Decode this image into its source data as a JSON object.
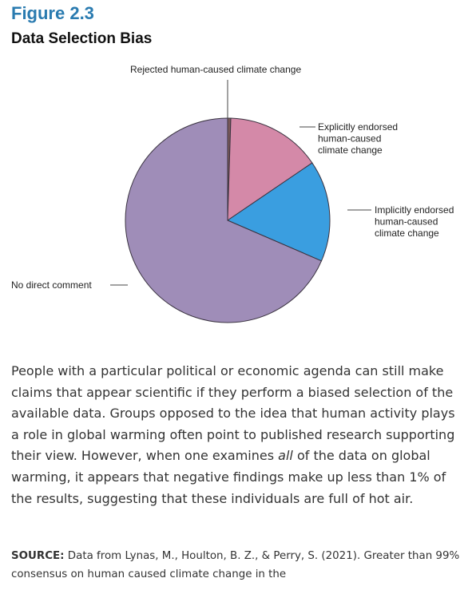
{
  "figure": {
    "label": "Figure 2.3",
    "title": "Data Selection Bias"
  },
  "chart_data": {
    "type": "pie",
    "title": "",
    "slices": [
      {
        "label": "Rejected human-caused climate change",
        "value": 0.5,
        "color": "#7a5a5a"
      },
      {
        "label": "Explicitly endorsed human-caused climate change",
        "value": 15.0,
        "color": "#d489a8"
      },
      {
        "label": "Implicitly endorsed human-caused climate change",
        "value": 16.0,
        "color": "#3a9ee0"
      },
      {
        "label": "No direct comment",
        "value": 68.5,
        "color": "#9f8db8"
      }
    ]
  },
  "labels": {
    "rejected": "Rejected human-caused climate change",
    "explicit": [
      "Explicitly endorsed",
      "human-caused",
      "climate change"
    ],
    "implicit": [
      "Implicitly endorsed",
      "human-caused",
      "climate change"
    ],
    "no_comment": "No direct comment"
  },
  "body": {
    "text_before": "People with a particular political or economic agenda can still make claims that appear scientific if they perform a biased selection of the available data. Groups opposed to the idea that human activity plays a role in global warming often point to published research supporting their view. However, when one examines ",
    "emphasis": "all",
    "text_after": " of the data on global warming, it appears that negative findings make up less than 1% of the results, suggesting that these individuals are full of hot air."
  },
  "source": {
    "label": "SOURCE:",
    "text": " Data from Lynas, M., Houlton, B. Z., & Perry, S. (2021). Greater than 99% consensus on human caused climate change in the"
  }
}
